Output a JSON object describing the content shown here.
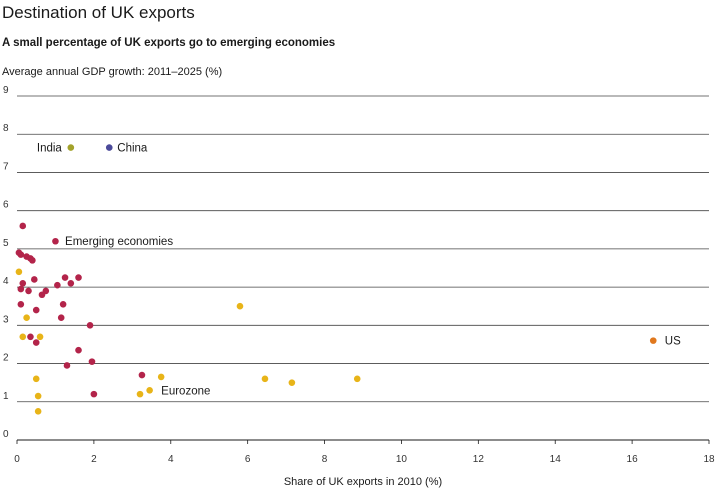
{
  "chart_data": {
    "type": "scatter",
    "title": "Destination of UK exports",
    "subtitle": "A small percentage of UK exports go to emerging economies",
    "ylabel": "Average annual GDP growth: 2011–2025 (%)",
    "xlabel": "Share of UK exports in 2010 (%)",
    "xlim": [
      0,
      18
    ],
    "ylim": [
      0,
      9
    ],
    "xticks": [
      0,
      2,
      4,
      6,
      8,
      10,
      12,
      14,
      16,
      18
    ],
    "yticks": [
      0,
      1,
      2,
      3,
      4,
      5,
      6,
      7,
      8,
      9
    ],
    "grid": "horizontal",
    "annotations": [
      {
        "text": "Emerging economies",
        "x": 1.25,
        "y": 5.2
      },
      {
        "text": "Eurozone",
        "x": 3.75,
        "y": 1.3
      },
      {
        "text": "US",
        "x": 16.85,
        "y": 2.6
      }
    ],
    "series": [
      {
        "name": "India",
        "color": "#a3a22b",
        "points": [
          [
            1.4,
            7.65
          ]
        ]
      },
      {
        "name": "China",
        "color": "#4b4a9a",
        "points": [
          [
            2.4,
            7.65
          ]
        ]
      },
      {
        "name": "Emerging economies",
        "color": "#b3244a",
        "points": [
          [
            0.15,
            5.6
          ],
          [
            0.05,
            4.9
          ],
          [
            0.1,
            4.85
          ],
          [
            0.25,
            4.8
          ],
          [
            0.35,
            4.75
          ],
          [
            0.4,
            4.7
          ],
          [
            1.0,
            5.2
          ],
          [
            0.45,
            4.2
          ],
          [
            0.15,
            4.1
          ],
          [
            0.1,
            3.95
          ],
          [
            0.3,
            3.9
          ],
          [
            0.65,
            3.8
          ],
          [
            0.75,
            3.9
          ],
          [
            1.05,
            4.05
          ],
          [
            1.25,
            4.25
          ],
          [
            1.4,
            4.1
          ],
          [
            1.6,
            4.25
          ],
          [
            1.2,
            3.55
          ],
          [
            1.15,
            3.2
          ],
          [
            0.1,
            3.55
          ],
          [
            0.5,
            3.4
          ],
          [
            1.9,
            3.0
          ],
          [
            0.35,
            2.7
          ],
          [
            0.5,
            2.55
          ],
          [
            1.6,
            2.35
          ],
          [
            1.3,
            1.95
          ],
          [
            1.95,
            2.05
          ],
          [
            3.25,
            1.7
          ],
          [
            2.0,
            1.2
          ]
        ]
      },
      {
        "name": "Eurozone",
        "color": "#e8b418",
        "points": [
          [
            0.05,
            4.4
          ],
          [
            0.25,
            3.2
          ],
          [
            0.15,
            2.7
          ],
          [
            0.6,
            2.7
          ],
          [
            0.5,
            1.6
          ],
          [
            0.55,
            1.15
          ],
          [
            0.55,
            0.75
          ],
          [
            3.2,
            1.2
          ],
          [
            3.45,
            1.3
          ],
          [
            3.75,
            1.65
          ],
          [
            5.8,
            3.5
          ],
          [
            6.45,
            1.6
          ],
          [
            7.15,
            1.5
          ],
          [
            8.85,
            1.6
          ]
        ]
      },
      {
        "name": "US",
        "color": "#e0781d",
        "points": [
          [
            16.55,
            2.6
          ]
        ]
      }
    ]
  }
}
